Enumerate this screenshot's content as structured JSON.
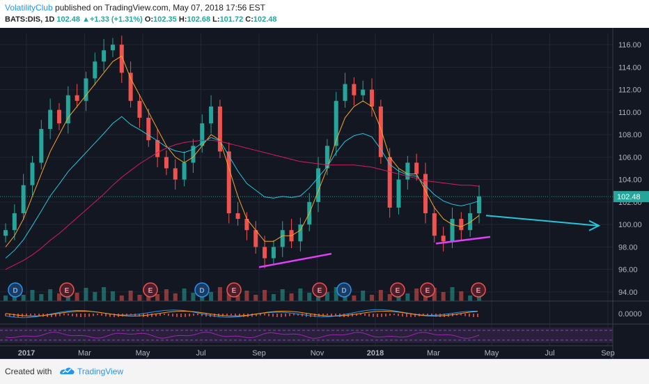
{
  "header": {
    "author": "VolatilityClub",
    "published": " published on TradingView.com, May 07, 2018 17:56 EST",
    "symbol": "BATS:DIS, 1D",
    "last": "102.48",
    "change": "+1.33 (+1.31%)",
    "o_label": "O:",
    "o": "102.35",
    "h_label": "H:",
    "h": "102.68",
    "l_label": "L:",
    "l": "101.72",
    "c_label": "C:",
    "c": "102.48",
    "up_arrow": "▲"
  },
  "footer": {
    "created": "Created with",
    "brand": "TradingView"
  },
  "colors": {
    "up": "#26a69a",
    "down": "#ef5350",
    "background": "#131722",
    "annotation_trend": "#e040fb",
    "annotation_arrow": "#26c6da",
    "price_badge": "#26a69a"
  },
  "chart_data": {
    "type": "candlestick",
    "symbol": "BATS:DIS",
    "interval": "1D",
    "price_axis": [
      "116.00",
      "114.00",
      "112.00",
      "110.00",
      "108.00",
      "106.00",
      "104.00",
      "102.00",
      "100.00",
      "98.00",
      "96.00",
      "94.00"
    ],
    "current_price_label": "102.48",
    "oscillator_label": "0.0000",
    "time_axis": [
      "2017",
      "Mar",
      "May",
      "Jul",
      "Sep",
      "Nov",
      "2018",
      "Mar",
      "May",
      "Jul",
      "Sep"
    ],
    "ylim": [
      93,
      117
    ],
    "closes": [
      99.5,
      101,
      103.5,
      105.5,
      108.5,
      110.2,
      109,
      111.5,
      111,
      113,
      114.5,
      115.5,
      116,
      113.5,
      111,
      109.5,
      107.5,
      106,
      105,
      104,
      105.5,
      107,
      109,
      110.5,
      106.5,
      101,
      100.5,
      99.5,
      98,
      97,
      98,
      99.5,
      98.5,
      100,
      102,
      105,
      107,
      111,
      112.5,
      111.5,
      112,
      110.5,
      106,
      101.5,
      104,
      105.5,
      104.5,
      101,
      99,
      98.5,
      100.5,
      99.5,
      101,
      102.5
    ],
    "ma_fast": [
      98,
      99,
      100.5,
      102.5,
      104.5,
      106.5,
      108,
      109.5,
      110.5,
      111.5,
      112.5,
      113.5,
      114.5,
      115,
      113,
      111.5,
      110,
      108.5,
      107,
      106,
      105.5,
      106,
      107,
      108,
      107.5,
      105,
      102.5,
      100.5,
      99.5,
      98.5,
      98.5,
      99,
      99,
      99.5,
      101,
      103,
      105,
      107.5,
      109.5,
      110.5,
      111,
      110.5,
      108.5,
      106,
      105,
      104.5,
      104.5,
      103,
      101.5,
      100.5,
      100,
      99.8,
      100.2,
      100.8
    ],
    "ma_slow": [
      96,
      96.4,
      96.8,
      97.3,
      97.9,
      98.6,
      99.2,
      99.9,
      100.6,
      101.3,
      102,
      102.7,
      103.5,
      104.2,
      104.8,
      105.4,
      105.9,
      106.4,
      106.8,
      107.1,
      107.3,
      107.4,
      107.5,
      107.5,
      107.4,
      107.2,
      107,
      106.8,
      106.6,
      106.4,
      106.2,
      106,
      105.8,
      105.6,
      105.5,
      105.4,
      105.3,
      105.3,
      105.3,
      105.3,
      105.2,
      105.1,
      104.9,
      104.7,
      104.5,
      104.3,
      104.1,
      103.9,
      103.8,
      103.7,
      103.6,
      103.5,
      103.5,
      103.4
    ],
    "event_markers": [
      "D",
      "E",
      "E",
      "D",
      "E",
      "E",
      "D",
      "E",
      "E",
      "E"
    ],
    "annotations": [
      {
        "type": "trendline",
        "from": [
          "Sep",
          96.2
        ],
        "to": [
          "Nov",
          97.4
        ]
      },
      {
        "type": "trendline",
        "from": [
          "2018-Apr",
          98.3
        ],
        "to": [
          "May",
          98.8
        ]
      },
      {
        "type": "arrow",
        "from": [
          "May",
          100.8
        ],
        "to": [
          "Sep",
          99.9
        ]
      }
    ]
  }
}
